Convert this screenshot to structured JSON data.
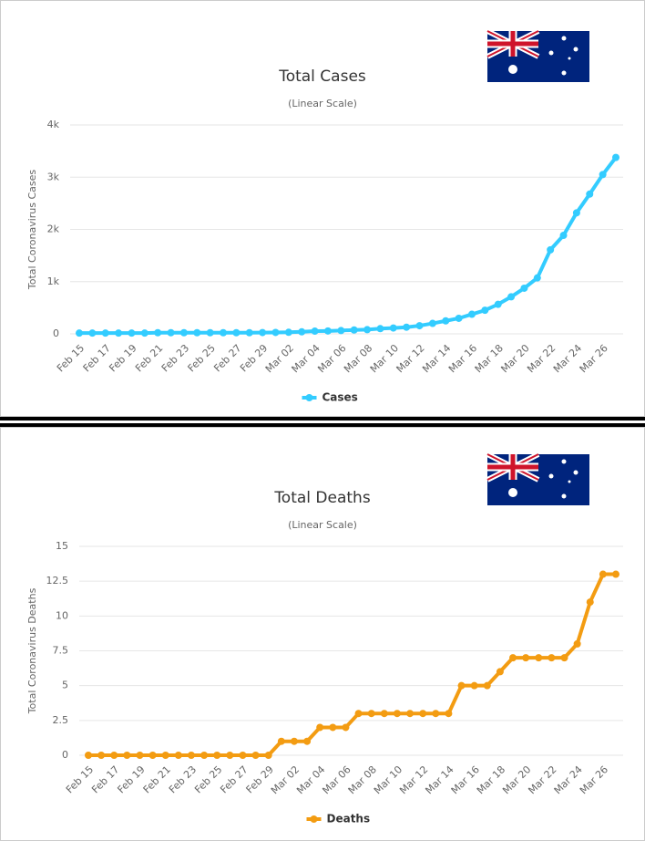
{
  "chart_data": [
    {
      "type": "line",
      "title": "Total Cases",
      "subtitle": "(Linear Scale)",
      "y_label": "Total Coronavirus Cases",
      "categories": [
        "Feb 15",
        null,
        "Feb 17",
        null,
        "Feb 19",
        null,
        "Feb 21",
        null,
        "Feb 23",
        null,
        "Feb 25",
        null,
        "Feb 27",
        null,
        "Feb 29",
        null,
        "Mar 02",
        null,
        "Mar 04",
        null,
        "Mar 06",
        null,
        "Mar 08",
        null,
        "Mar 10",
        null,
        "Mar 12",
        null,
        "Mar 14",
        null,
        "Mar 16",
        null,
        "Mar 18",
        null,
        "Mar 20",
        null,
        "Mar 22",
        null,
        "Mar 24",
        null,
        "Mar 26",
        null
      ],
      "series": [
        {
          "name": "Cases",
          "color": "#33ccff",
          "values": [
            15,
            15,
            15,
            15,
            15,
            15,
            22,
            22,
            22,
            22,
            22,
            22,
            22,
            22,
            25,
            27,
            30,
            39,
            52,
            55,
            63,
            74,
            80,
            100,
            112,
            127,
            156,
            200,
            249,
            298,
            375,
            452,
            565,
            709,
            874,
            1071,
            1609,
            1886,
            2317,
            2676,
            3050,
            3378
          ]
        }
      ],
      "ylim": [
        0,
        4000
      ],
      "yticks": [
        0,
        {
          "value": 1000,
          "label": "1k"
        },
        {
          "value": 2000,
          "label": "2k"
        },
        {
          "value": 3000,
          "label": "3k"
        },
        {
          "value": 4000,
          "label": "4k"
        }
      ],
      "grid": true
    },
    {
      "type": "line",
      "title": "Total Deaths",
      "subtitle": "(Linear Scale)",
      "y_label": "Total Coronavirus Deaths",
      "categories": [
        "Feb 15",
        null,
        "Feb 17",
        null,
        "Feb 19",
        null,
        "Feb 21",
        null,
        "Feb 23",
        null,
        "Feb 25",
        null,
        "Feb 27",
        null,
        "Feb 29",
        null,
        "Mar 02",
        null,
        "Mar 04",
        null,
        "Mar 06",
        null,
        "Mar 08",
        null,
        "Mar 10",
        null,
        "Mar 12",
        null,
        "Mar 14",
        null,
        "Mar 16",
        null,
        "Mar 18",
        null,
        "Mar 20",
        null,
        "Mar 22",
        null,
        "Mar 24",
        null,
        "Mar 26",
        null
      ],
      "series": [
        {
          "name": "Deaths",
          "color": "#f39c12",
          "values": [
            0,
            0,
            0,
            0,
            0,
            0,
            0,
            0,
            0,
            0,
            0,
            0,
            0,
            0,
            0,
            1,
            1,
            1,
            2,
            2,
            2,
            3,
            3,
            3,
            3,
            3,
            3,
            3,
            3,
            5,
            5,
            5,
            6,
            7,
            7,
            7,
            7,
            7,
            8,
            11,
            13,
            13
          ]
        }
      ],
      "ylim": [
        0,
        15
      ],
      "yticks": [
        0,
        2.5,
        5,
        7.5,
        10,
        12.5,
        15
      ],
      "grid": true
    }
  ]
}
